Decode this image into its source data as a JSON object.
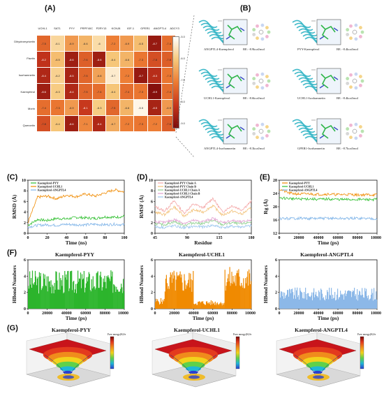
{
  "panels": {
    "A": "(A)",
    "B": "(B)",
    "C": "(C)",
    "D": "(D)",
    "E": "(E)",
    "F": "(F)",
    "G": "(G)"
  },
  "heatmap": {
    "columns": [
      "UCHL1",
      "SAT1",
      "PYY",
      "PRPF40C",
      "P2RY13",
      "KCNJ8",
      "IGF-1",
      "GPER1",
      "ANGPTL4",
      "ADCY3"
    ],
    "rows": [
      "Dihydromyricetin",
      "Fisetin",
      "Isorhamnetin",
      "Kaempferol",
      "Morin",
      "Quercetin"
    ],
    "values": [
      [
        "-7.5",
        "-6.1",
        "-6.9",
        "-6.6",
        "-6",
        "-7.2",
        "-6.9",
        "-6.5",
        "-8.7",
        "-7.4"
      ],
      [
        "-8.2",
        "-6.5",
        "-8.6",
        "-7.6",
        "-8.6",
        "-6.4",
        "-6.6",
        "-7.3",
        "-7.8",
        "-7.6"
      ],
      [
        "-8.4",
        "-6.2",
        "-8.5",
        "-7.5",
        "-6.8",
        "-5.7",
        "-7.2",
        "-8.7",
        "-8.3",
        "-7.3"
      ],
      [
        "-8.6",
        "-6.3",
        "-8.4",
        "-7.5",
        "-7.4",
        "-6.4",
        "-7.4",
        "-7.3",
        "-8.9",
        "-7.4"
      ],
      [
        "-7.4",
        "-7.3",
        "-6.9",
        "-8.1",
        "-6.3",
        "-7.5",
        "-6.6",
        "-5.5",
        "-8.5",
        "-6.9"
      ],
      [
        "-7.8",
        "-6.4",
        "-8.6",
        "-7.1",
        "-8.4",
        "-6.7",
        "-7.2",
        "-7.3",
        "-7.2",
        "-7.6"
      ]
    ],
    "colorbar_ticks": [
      "-5.0",
      "-6.0",
      "-7.0",
      "-8.0",
      "-9.0"
    ]
  },
  "docking": [
    {
      "caption": "ANGPTL4-Kaempferol",
      "be": "BE: -8.9kcal/mol"
    },
    {
      "caption": "PYY-Kaempferol",
      "be": "BE: -8.4kcal/mol"
    },
    {
      "caption": "UCHL1-Kaempferol",
      "be": "BE: -8.6kcal/mol"
    },
    {
      "caption": "UCHL1-Isorhamnetin",
      "be": "BE: -8.4kcal/mol"
    },
    {
      "caption": "ANGPTL4-Isorhamnetin",
      "be": "BE: -8.3kcal/mol"
    },
    {
      "caption": "GPER1-Isorhamnetin",
      "be": "BE: -8.7kcal/mol"
    }
  ],
  "chart_data": [
    {
      "type": "line",
      "panel": "C",
      "xlabel": "Time (ns)",
      "ylabel": "RMSD (Å)",
      "xlim": [
        0,
        100
      ],
      "ylim": [
        0,
        10
      ],
      "xticks": [
        "0",
        "20",
        "40",
        "60",
        "80",
        "100"
      ],
      "yticks": [
        "0",
        "2",
        "4",
        "6",
        "8",
        "10"
      ],
      "series": [
        {
          "name": "Kaempferol-PYY",
          "color": "#2fbf2f",
          "values": [
            1.5,
            2.6,
            2.4,
            2.8,
            2.7,
            3.0,
            2.9,
            2.8,
            3.1,
            3.0,
            3.2
          ]
        },
        {
          "name": "Kaempferol-UCHL1",
          "color": "#f08a00",
          "values": [
            2.0,
            6.8,
            7.0,
            6.5,
            7.2,
            6.9,
            7.4,
            7.0,
            7.6,
            8.2,
            7.8
          ]
        },
        {
          "name": "Kaempferol-ANGPTL4",
          "color": "#7fb4e8",
          "values": [
            1.2,
            1.5,
            1.6,
            1.5,
            1.7,
            1.6,
            1.6,
            1.7,
            1.6,
            1.7,
            1.6
          ]
        }
      ]
    },
    {
      "type": "line",
      "panel": "D",
      "xlabel": "Residue",
      "ylabel": "RMSF (Å)",
      "xlim": [
        0,
        200
      ],
      "ylim": [
        0,
        10
      ],
      "xticks": [
        "45",
        "90",
        "135",
        "180"
      ],
      "yticks": [
        "0",
        "2",
        "4",
        "6",
        "8",
        "10"
      ],
      "series": [
        {
          "name": "Kaempferol-PYY Chain A",
          "color": "#f4a6a6",
          "values": [
            5.0,
            4.2,
            6.1,
            3.8,
            5.5,
            4.8,
            6.6,
            4.0,
            5.2,
            4.4,
            6.0
          ]
        },
        {
          "name": "Kaempferol-PYY Chain B",
          "color": "#f2c27a",
          "values": [
            4.0,
            3.5,
            5.0,
            3.2,
            4.4,
            4.0,
            5.2,
            3.4,
            4.2,
            3.6,
            4.8
          ]
        },
        {
          "name": "Kaempferol-UCHL1 Chain A",
          "color": "#8fd08f",
          "values": [
            1.8,
            1.6,
            2.2,
            1.5,
            2.0,
            1.8,
            2.4,
            1.6,
            2.0,
            1.7,
            2.2
          ]
        },
        {
          "name": "Kaempferol-UCHL1 Chain B",
          "color": "#e0a0d0",
          "values": [
            2.2,
            2.0,
            2.6,
            1.9,
            2.4,
            2.2,
            2.8,
            2.0,
            2.4,
            2.1,
            2.6
          ]
        },
        {
          "name": "Kaempferol-ANGPTL4",
          "color": "#9bc6ee",
          "values": [
            1.2,
            1.1,
            1.4,
            1.0,
            1.3,
            1.2,
            1.5,
            1.1,
            1.3,
            1.2,
            1.4
          ]
        }
      ]
    },
    {
      "type": "line",
      "panel": "E",
      "xlabel": "Time (ps)",
      "ylabel": "Rg (Å)",
      "xlim": [
        0,
        100000
      ],
      "ylim": [
        12,
        30
      ],
      "xticks": [
        "0",
        "20000",
        "40000",
        "60000",
        "80000",
        "100000"
      ],
      "yticks": [
        "12",
        "16",
        "20",
        "24",
        "28"
      ],
      "series": [
        {
          "name": "Kaempferol-PYY",
          "color": "#f08a00",
          "values": [
            27.0,
            25.6,
            25.3,
            25.4,
            25.2,
            25.3,
            25.1,
            25.2,
            25.0,
            25.1,
            25.0
          ]
        },
        {
          "name": "Kaempferol-UCHL1",
          "color": "#2fbf2f",
          "values": [
            24.0,
            23.8,
            23.6,
            23.7,
            23.5,
            23.6,
            23.5,
            23.4,
            23.5,
            23.4,
            23.5
          ]
        },
        {
          "name": "Kaempferol-ANGPTL4",
          "color": "#7fb4e8",
          "values": [
            17.0,
            17.0,
            17.1,
            17.0,
            17.0,
            17.1,
            17.0,
            17.0,
            17.1,
            17.0,
            17.0
          ]
        }
      ]
    },
    {
      "type": "bar",
      "panel": "F1",
      "title": "Kaempferol-PYY",
      "xlabel": "Time (ps)",
      "ylabel": "HBond Numbers",
      "xlim": [
        0,
        100000
      ],
      "ylim": [
        0,
        6
      ],
      "xticks": [
        "0",
        "20000",
        "40000",
        "60000",
        "80000",
        "100000"
      ],
      "yticks": [
        "0",
        "2",
        "4",
        "6"
      ],
      "color": "#2cb52c",
      "level": 0.55
    },
    {
      "type": "bar",
      "panel": "F2",
      "title": "Kaempferol-UCHL1",
      "xlabel": "Time (ps)",
      "ylabel": "HBond Numbers",
      "xlim": [
        0,
        100000
      ],
      "ylim": [
        0,
        6
      ],
      "xticks": [
        "0",
        "20000",
        "40000",
        "60000",
        "80000",
        "100000"
      ],
      "yticks": [
        "0",
        "2",
        "4",
        "6"
      ],
      "color": "#f08a00",
      "level": 0.45
    },
    {
      "type": "bar",
      "panel": "F3",
      "title": "Kaempferol-ANGPTL4",
      "xlabel": "Time (ps)",
      "ylabel": "HBond Numbers",
      "xlim": [
        0,
        100000
      ],
      "ylim": [
        0,
        6
      ],
      "xticks": [
        "0",
        "20000",
        "40000",
        "60000",
        "80000",
        "100000"
      ],
      "yticks": [
        "0",
        "2",
        "4",
        "6"
      ],
      "color": "#8cb8e8",
      "level": 0.3
    }
  ],
  "landscapes": [
    {
      "title": "Kaempferol-PYY",
      "legend": "Free energy(KJ/mol)"
    },
    {
      "title": "Kaempferol-UCHL1",
      "legend": "Free energy(KJ/mol)"
    },
    {
      "title": "Kaempferol-ANGPTL4",
      "legend": "Free energy(KJ/mol)"
    }
  ]
}
